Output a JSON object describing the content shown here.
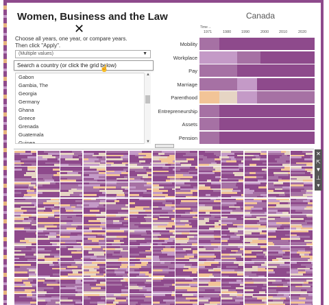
{
  "header": {
    "title": "Women, Business and the Law",
    "close_symbol": "✕",
    "instruction_line1": "Choose all years, one year, or compare years.",
    "instruction_line2": "Then click \"Apply\"."
  },
  "filter": {
    "dropdown_value": "(Multiple values)",
    "search_placeholder": "Search a country (or click the grid below)",
    "countries": [
      "Gabon",
      "Gambia, The",
      "Georgia",
      "Germany",
      "Ghana",
      "Greece",
      "Grenada",
      "Guatemala",
      "Guinea"
    ]
  },
  "chart_data": {
    "type": "heatmap",
    "title": "Canada",
    "time_label": "Time→",
    "x_ticks": [
      "1971",
      "1980",
      "1990",
      "2000",
      "2010",
      "2020"
    ],
    "rows": [
      "Mobility",
      "Workplace",
      "Pay",
      "Marriage",
      "Parenthood",
      "Entrepreneurship",
      "Assets",
      "Pension"
    ],
    "colors": {
      "full": "#8e4a8c",
      "mid": "#a671a4",
      "light": "#c49ac7",
      "pale": "#e6d5c4",
      "orange": "#f2c497"
    }
  },
  "toolbar": {
    "icons": [
      "close-icon",
      "popout-icon",
      "filter-icon",
      "pin-icon",
      "dropdown-icon"
    ],
    "symbols": [
      "✕",
      "⇱",
      "▼",
      "⊥",
      "▾"
    ]
  }
}
